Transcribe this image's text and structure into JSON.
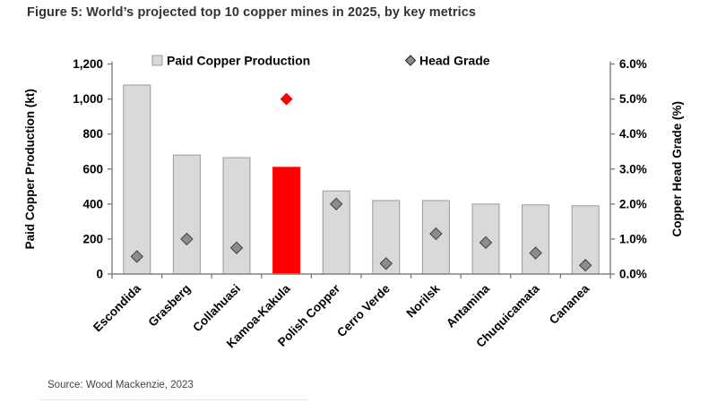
{
  "page": {
    "title": "Figure 5: World’s projected top 10 copper mines in 2025, by key metrics",
    "source": "Source: Wood Mackenzie, 2023"
  },
  "chart_data": {
    "type": "bar",
    "subtype": "combo-bar-scatter-dual-axis",
    "categories": [
      "Escondida",
      "Grasberg",
      "Collahuasi",
      "Kamoa-Kakula",
      "Polish Copper",
      "Cerro Verde",
      "Norilsk",
      "Antamina",
      "Chuquicamata",
      "Cananea"
    ],
    "highlight_category": "Kamoa-Kakula",
    "highlight_index": 3,
    "series": [
      {
        "name": "Paid Copper Production",
        "render": "bar",
        "axis": "left",
        "unit": "kt",
        "values": [
          1080,
          680,
          665,
          610,
          475,
          420,
          420,
          400,
          395,
          390
        ],
        "bar_color": "#d9d9d9",
        "bar_border": "#9a9a9a",
        "highlight_color": "#ff0000"
      },
      {
        "name": "Head Grade",
        "render": "diamond",
        "axis": "right",
        "unit": "%",
        "values": [
          0.5,
          1.0,
          0.75,
          5.0,
          2.0,
          0.3,
          1.15,
          0.9,
          0.6,
          0.25
        ],
        "marker_color": "#8c8c8c",
        "marker_border": "#3d3d3d",
        "highlight_color": "#ff0000"
      }
    ],
    "left_axis": {
      "label": "Paid Copper Production (kt)",
      "min": 0,
      "max": 1200,
      "step": 200,
      "tick_labels": [
        "0",
        "200",
        "400",
        "600",
        "800",
        "1,000",
        "1,200"
      ]
    },
    "right_axis": {
      "label": "Copper Head Grade (%)",
      "min": 0,
      "max": 6,
      "step": 1,
      "tick_labels": [
        "0.0%",
        "1.0%",
        "2.0%",
        "3.0%",
        "4.0%",
        "5.0%",
        "6.0%"
      ]
    },
    "legend": [
      {
        "label": "Paid Copper Production",
        "marker": "square"
      },
      {
        "label": "Head Grade",
        "marker": "diamond"
      }
    ],
    "legend_position": "top-inside",
    "grid": false,
    "axis_color": "#808080",
    "text_color": "#000000"
  }
}
